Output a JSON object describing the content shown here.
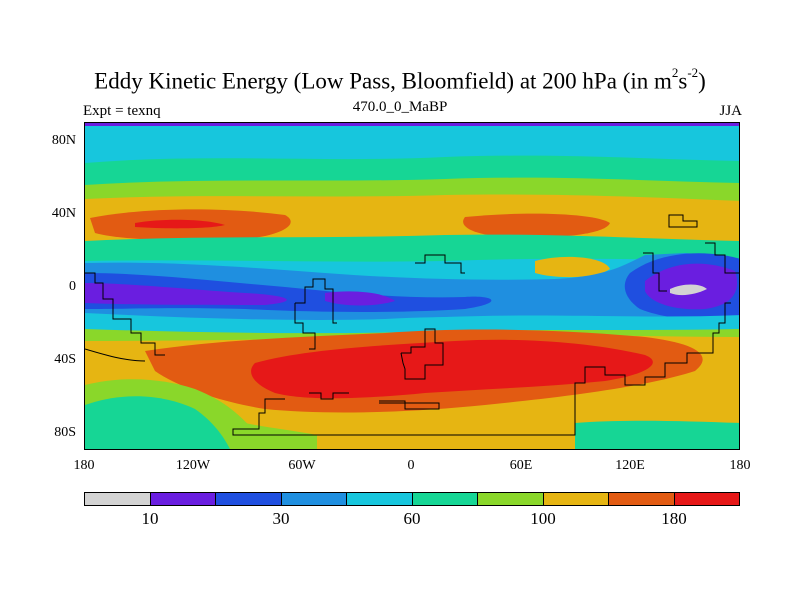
{
  "title": {
    "main": "Eddy Kinetic Energy (Low Pass, Bloomfield) at 200 hPa (in m",
    "sup1": "2",
    "mid": "s",
    "sup2": "-2",
    "close": ")"
  },
  "subtitle": {
    "left": "Expt = texnq",
    "center": "470.0_0_MaBP",
    "right": "JJA"
  },
  "lat_labels": [
    "80N",
    "40N",
    "0",
    "40S",
    "80S"
  ],
  "lon_labels": [
    "180",
    "120W",
    "60W",
    "0",
    "60E",
    "120E",
    "180"
  ],
  "colorbar": {
    "colors": [
      "#d3d3d3",
      "#6a1ee0",
      "#1f4fe0",
      "#1f8fe0",
      "#17c6dd",
      "#16d695",
      "#8ad72a",
      "#e6b512",
      "#e25b12",
      "#e61818"
    ],
    "labels": [
      "10",
      "30",
      "60",
      "100",
      "180"
    ]
  }
}
